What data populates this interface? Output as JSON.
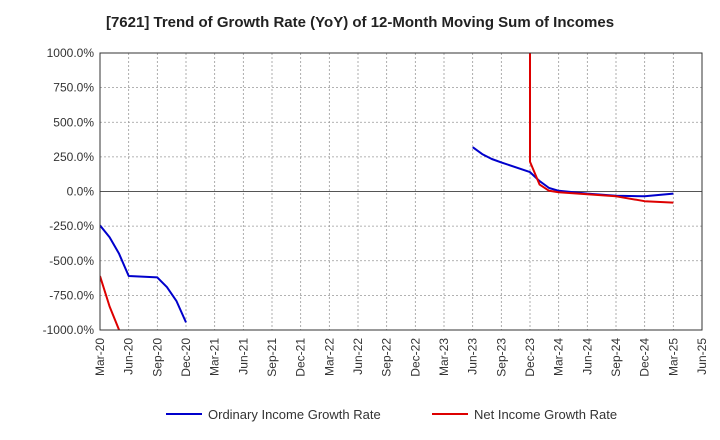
{
  "chart_data": {
    "type": "line",
    "title": "[7621]  Trend of Growth Rate (YoY) of 12-Month Moving Sum of Incomes",
    "xlabel": "",
    "ylabel": "",
    "ylim": [
      -1000,
      1000
    ],
    "y_ticks": [
      1000,
      750,
      500,
      250,
      0,
      -250,
      -500,
      -750,
      -1000
    ],
    "y_tick_labels": [
      "1000.0%",
      "750.0%",
      "500.0%",
      "250.0%",
      "0.0%",
      "-250.0%",
      "-500.0%",
      "-750.0%",
      "-1000.0%"
    ],
    "x_range": [
      "2020-03",
      "2025-06"
    ],
    "x_tick_labels": [
      "Mar-20",
      "Jun-20",
      "Sep-20",
      "Dec-20",
      "Mar-21",
      "Jun-21",
      "Sep-21",
      "Dec-21",
      "Mar-22",
      "Jun-22",
      "Sep-22",
      "Dec-22",
      "Mar-23",
      "Jun-23",
      "Sep-23",
      "Dec-23",
      "Mar-24",
      "Jun-24",
      "Sep-24",
      "Dec-24",
      "Mar-25",
      "Jun-25"
    ],
    "grid": true,
    "legend_position": "bottom",
    "series": [
      {
        "name": "Ordinary Income Growth Rate",
        "color": "#0000cc",
        "points": [
          [
            "2020-03",
            -245
          ],
          [
            "2020-04",
            -330
          ],
          [
            "2020-05",
            -450
          ],
          [
            "2020-06",
            -610
          ],
          [
            "2020-09",
            -620
          ],
          [
            "2020-10",
            -690
          ],
          [
            "2020-11",
            -790
          ],
          [
            "2020-12",
            -945
          ]
        ],
        "break_after": "2020-12",
        "points_2": [
          [
            "2023-06",
            320
          ],
          [
            "2023-07",
            270
          ],
          [
            "2023-08",
            235
          ],
          [
            "2023-09",
            210
          ],
          [
            "2023-12",
            140
          ],
          [
            "2024-01",
            75
          ],
          [
            "2024-02",
            25
          ],
          [
            "2024-03",
            5
          ],
          [
            "2024-06",
            -15
          ],
          [
            "2024-09",
            -30
          ],
          [
            "2024-12",
            -35
          ],
          [
            "2025-03",
            -15
          ]
        ]
      },
      {
        "name": "Net Income Growth Rate",
        "color": "#dd0000",
        "points": [
          [
            "2020-03",
            -610
          ],
          [
            "2020-04",
            -830
          ],
          [
            "2020-05",
            -1000
          ]
        ],
        "points_2": [
          [
            "2023-12",
            1000
          ],
          [
            "2023-12",
            215
          ],
          [
            "2024-01",
            50
          ],
          [
            "2024-02",
            5
          ],
          [
            "2024-03",
            -5
          ],
          [
            "2024-06",
            -20
          ],
          [
            "2024-09",
            -35
          ],
          [
            "2024-12",
            -70
          ],
          [
            "2025-03",
            -80
          ]
        ]
      }
    ]
  }
}
